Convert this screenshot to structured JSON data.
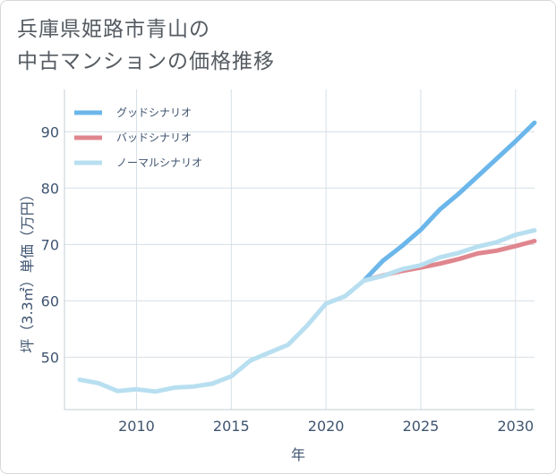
{
  "title_lines": [
    "兵庫県姫路市青山の",
    "中古マンションの価格推移"
  ],
  "chart_data": {
    "type": "line",
    "xlabel": "年",
    "ylabel": "坪（3.3㎡）単価（万円）",
    "xlim": [
      2006.2,
      2031
    ],
    "ylim": [
      40.7,
      97.5
    ],
    "xticks": [
      2010,
      2015,
      2020,
      2025,
      2030
    ],
    "yticks": [
      50,
      60,
      70,
      80,
      90
    ],
    "grid": true,
    "legend_position": "top-left",
    "series": [
      {
        "name": "グッドシナリオ",
        "color": "#6bb6ea",
        "x": [
          2022,
          2023,
          2024,
          2025,
          2026,
          2027,
          2028,
          2029,
          2030,
          2031
        ],
        "y": [
          63.6,
          67.1,
          69.7,
          72.6,
          76.2,
          79.0,
          82.1,
          85.2,
          88.3,
          91.6
        ]
      },
      {
        "name": "バッドシナリオ",
        "color": "#e0868e",
        "x": [
          2022,
          2023,
          2024,
          2025,
          2026,
          2027,
          2028,
          2029,
          2030,
          2031
        ],
        "y": [
          63.6,
          64.5,
          65.3,
          65.9,
          66.6,
          67.4,
          68.4,
          68.9,
          69.7,
          70.6
        ]
      },
      {
        "name": "ノーマルシナリオ",
        "color": "#b8dff0",
        "x": [
          2007,
          2008,
          2009,
          2010,
          2011,
          2012,
          2013,
          2014,
          2015,
          2016,
          2017,
          2018,
          2019,
          2020,
          2021,
          2022,
          2023,
          2024,
          2025,
          2026,
          2027,
          2028,
          2029,
          2030,
          2031
        ],
        "y": [
          46.0,
          45.4,
          44.0,
          44.3,
          43.9,
          44.6,
          44.8,
          45.3,
          46.6,
          49.4,
          50.8,
          52.2,
          55.6,
          59.5,
          60.8,
          63.6,
          64.4,
          65.6,
          66.3,
          67.7,
          68.5,
          69.6,
          70.4,
          71.7,
          72.5
        ]
      }
    ]
  }
}
